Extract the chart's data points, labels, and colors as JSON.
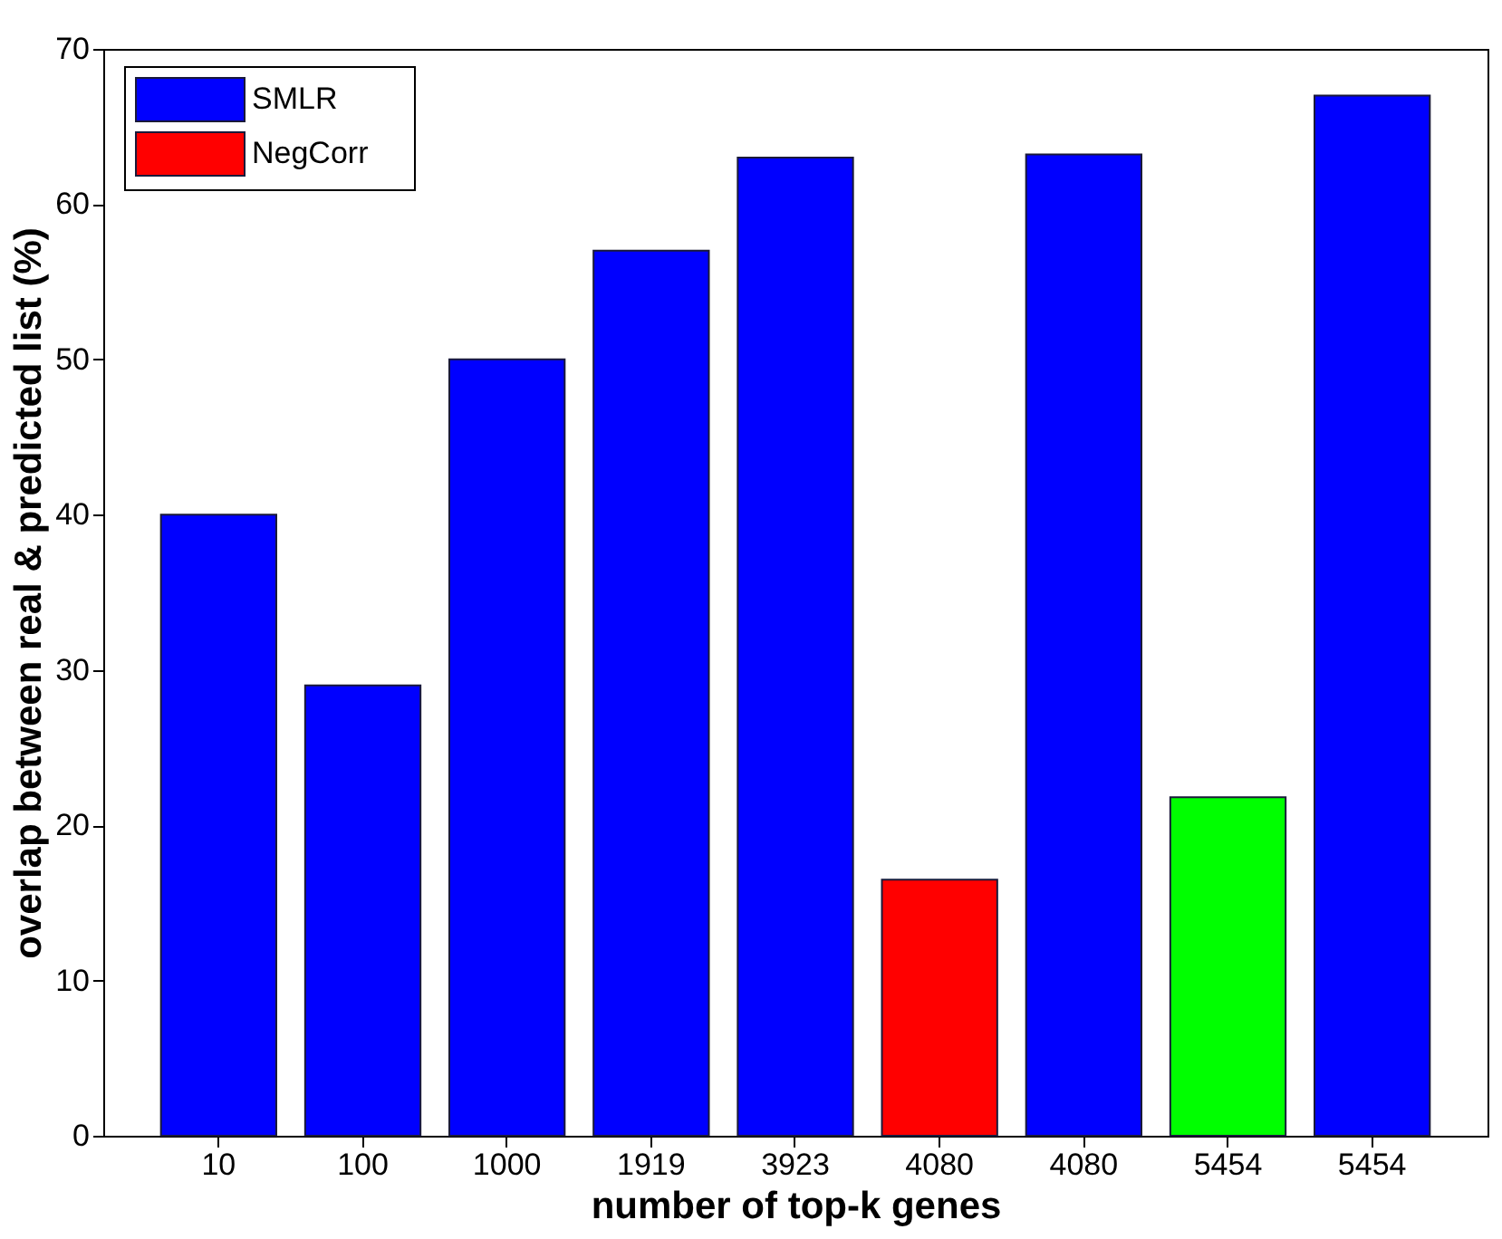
{
  "chart_data": {
    "type": "bar",
    "xlabel": "number of top-k genes",
    "ylabel": "overlap between real & predicted list (%)",
    "categories": [
      "10",
      "100",
      "1000",
      "1919",
      "3923",
      "4080",
      "4080",
      "5454",
      "5454"
    ],
    "series": [
      {
        "name": "SMLR",
        "color": "#0000ff",
        "values": [
          40,
          29,
          50,
          57,
          63,
          null,
          63.2,
          null,
          67
        ]
      },
      {
        "name": "NegCorr",
        "color": "#ff0000",
        "values": [
          null,
          null,
          null,
          null,
          null,
          16.5,
          null,
          null,
          null
        ]
      },
      {
        "color": "#00ff00",
        "values": [
          null,
          null,
          null,
          null,
          null,
          null,
          null,
          21.8,
          null
        ]
      }
    ],
    "ylim": [
      0,
      70
    ],
    "yticks": [
      0,
      10,
      20,
      30,
      40,
      50,
      60,
      70
    ],
    "grid": false,
    "legend": "top left"
  }
}
